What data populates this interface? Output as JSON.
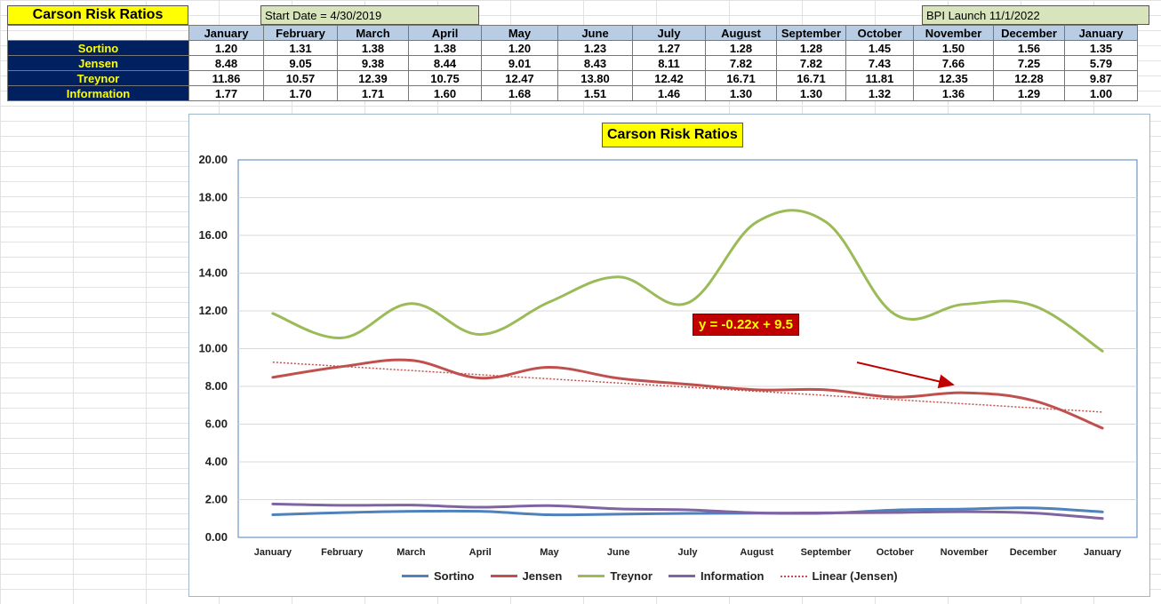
{
  "header": {
    "title": "Carson Risk Ratios",
    "start_date": "Start Date = 4/30/2019",
    "bpi_launch": "BPI Launch 11/1/2022"
  },
  "table": {
    "months": [
      "January",
      "February",
      "March",
      "April",
      "May",
      "June",
      "July",
      "August",
      "September",
      "October",
      "November",
      "December",
      "January"
    ],
    "rows": [
      {
        "label": "Sortino",
        "values": [
          "1.20",
          "1.31",
          "1.38",
          "1.38",
          "1.20",
          "1.23",
          "1.27",
          "1.28",
          "1.28",
          "1.45",
          "1.50",
          "1.56",
          "1.35"
        ]
      },
      {
        "label": "Jensen",
        "values": [
          "8.48",
          "9.05",
          "9.38",
          "8.44",
          "9.01",
          "8.43",
          "8.11",
          "7.82",
          "7.82",
          "7.43",
          "7.66",
          "7.25",
          "5.79"
        ]
      },
      {
        "label": "Treynor",
        "values": [
          "11.86",
          "10.57",
          "12.39",
          "10.75",
          "12.47",
          "13.80",
          "12.42",
          "16.71",
          "16.71",
          "11.81",
          "12.35",
          "12.28",
          "9.87"
        ]
      },
      {
        "label": "Information",
        "values": [
          "1.77",
          "1.70",
          "1.71",
          "1.60",
          "1.68",
          "1.51",
          "1.46",
          "1.30",
          "1.30",
          "1.32",
          "1.36",
          "1.29",
          "1.00"
        ]
      }
    ]
  },
  "chart_data": {
    "type": "line",
    "title": "Carson Risk Ratios",
    "categories": [
      "January",
      "February",
      "March",
      "April",
      "May",
      "June",
      "July",
      "August",
      "September",
      "October",
      "November",
      "December",
      "January"
    ],
    "ylim": [
      0,
      20
    ],
    "yticks": [
      "0.00",
      "2.00",
      "4.00",
      "6.00",
      "8.00",
      "10.00",
      "12.00",
      "14.00",
      "16.00",
      "18.00",
      "20.00"
    ],
    "grid": true,
    "legend": "bottom",
    "series": [
      {
        "name": "Sortino",
        "color": "#4f81bd",
        "values": [
          1.2,
          1.31,
          1.38,
          1.38,
          1.2,
          1.23,
          1.27,
          1.28,
          1.28,
          1.45,
          1.5,
          1.56,
          1.35
        ]
      },
      {
        "name": "Jensen",
        "color": "#c0504d",
        "values": [
          8.48,
          9.05,
          9.38,
          8.44,
          9.01,
          8.43,
          8.11,
          7.82,
          7.82,
          7.43,
          7.66,
          7.25,
          5.79
        ]
      },
      {
        "name": "Treynor",
        "color": "#9bbb59",
        "values": [
          11.86,
          10.57,
          12.39,
          10.75,
          12.47,
          13.8,
          12.42,
          16.71,
          16.71,
          11.81,
          12.35,
          12.28,
          9.87
        ]
      },
      {
        "name": "Information",
        "color": "#8064a2",
        "values": [
          1.77,
          1.7,
          1.71,
          1.6,
          1.68,
          1.51,
          1.46,
          1.3,
          1.3,
          1.32,
          1.36,
          1.29,
          1.0
        ]
      }
    ],
    "trendline": {
      "name": "Linear (Jensen)",
      "color": "#c0504d",
      "slope": -0.22,
      "intercept": 9.5,
      "equation": "y = -0.22x + 9.5"
    }
  }
}
